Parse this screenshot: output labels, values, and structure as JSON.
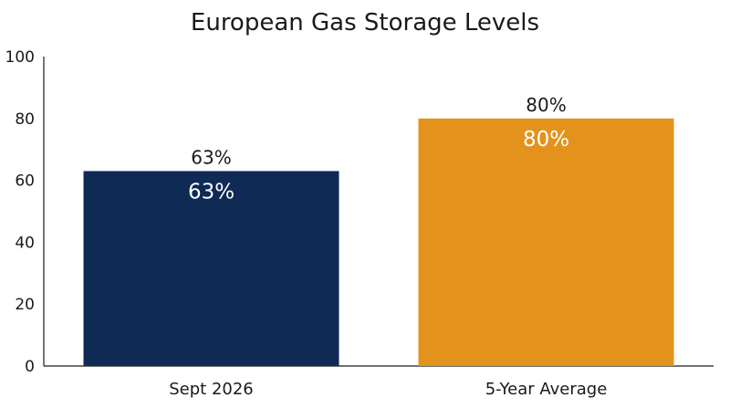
{
  "chart_data": {
    "type": "bar",
    "title": "European Gas Storage Levels",
    "categories": [
      "Sept 2026",
      "5-Year Average"
    ],
    "values": [
      63,
      80
    ],
    "value_labels": [
      "63%",
      "80%"
    ],
    "colors": [
      "#0e2a55",
      "#e3921b"
    ],
    "ylim": [
      0,
      100
    ],
    "yticks": [
      "0",
      "20",
      "40",
      "60",
      "80",
      "100"
    ],
    "grid": false,
    "legend": "none"
  }
}
